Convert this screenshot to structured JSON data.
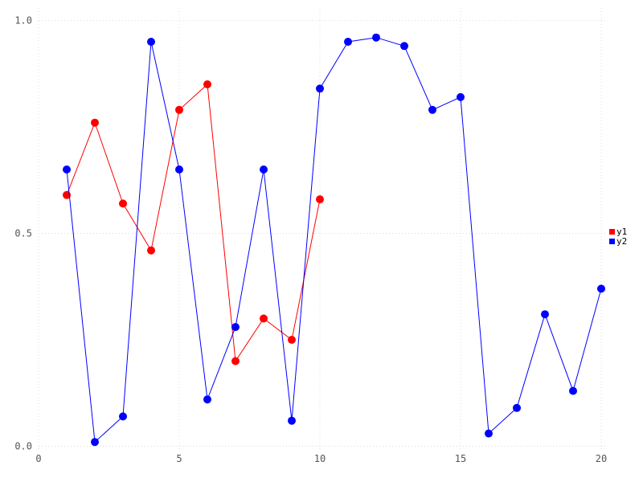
{
  "chart_data": {
    "type": "line",
    "title": "",
    "xlabel": "",
    "ylabel": "",
    "xlim": [
      0,
      20.6
    ],
    "ylim": [
      0,
      1.03
    ],
    "xticks": {
      "values": [
        0,
        5,
        10,
        15,
        20
      ],
      "labels": [
        "0",
        "5",
        "10",
        "15",
        "20"
      ]
    },
    "yticks": {
      "values": [
        0,
        0.5,
        1.0
      ],
      "labels": [
        "0.0",
        "0.5",
        "1.0"
      ]
    },
    "grid": "dotted-both-axes",
    "series": [
      {
        "name": "y1",
        "color": "#ff0000",
        "marker": "circle",
        "x": [
          1,
          2,
          3,
          4,
          5,
          6,
          7,
          8,
          9,
          10
        ],
        "values": [
          0.59,
          0.76,
          0.57,
          0.46,
          0.79,
          0.85,
          0.2,
          0.3,
          0.25,
          0.58
        ]
      },
      {
        "name": "y2",
        "color": "#0000ff",
        "marker": "circle",
        "x": [
          1,
          2,
          3,
          4,
          5,
          6,
          7,
          8,
          9,
          10,
          11,
          12,
          13,
          14,
          15,
          16,
          17,
          18,
          19,
          20
        ],
        "values": [
          0.65,
          0.01,
          0.07,
          0.95,
          0.65,
          0.11,
          0.28,
          0.65,
          0.06,
          0.84,
          0.95,
          0.96,
          0.94,
          0.79,
          0.82,
          0.03,
          0.09,
          0.31,
          0.13,
          0.37
        ]
      }
    ],
    "legend": {
      "position": "right-middle",
      "items": [
        "y1",
        "y2"
      ]
    },
    "colors": {
      "background": "#ffffff",
      "grid": "#dcdcdc",
      "tick_label": "#55555a",
      "legend_text": "#000000",
      "series_y1": "#ff0000",
      "series_y2": "#0000ff"
    }
  }
}
